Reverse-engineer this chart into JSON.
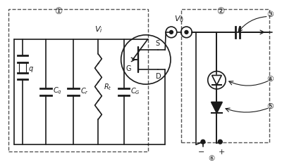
{
  "bg_color": "#ffffff",
  "line_color": "#1a1a1a",
  "dashed_color": "#555555",
  "fig_width": 4.0,
  "fig_height": 2.32,
  "dpi": 100,
  "labels": {
    "circle1": "①",
    "circle2": "②",
    "Cq": "C_q",
    "q": "q",
    "Cr": "C_r",
    "Rt": "R_t",
    "CG": "C_G",
    "Vi": "V_i",
    "Vo": "V_0",
    "S": "S",
    "G": "G",
    "D": "D",
    "num3": "③",
    "num4": "④",
    "num5": "⑤",
    "num6": "⑥",
    "minus": "−",
    "plus": "+"
  }
}
